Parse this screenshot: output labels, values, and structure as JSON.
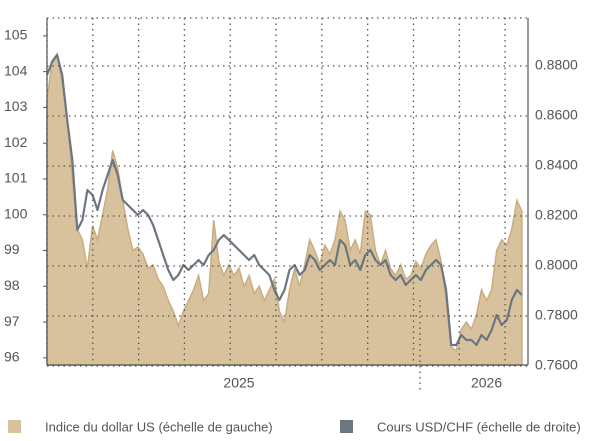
{
  "chart_data": {
    "type": "line",
    "xlim": [
      0,
      95.2
    ],
    "xticks": [
      {
        "value": 38,
        "label": "2025"
      },
      {
        "value": 87,
        "label": "2026"
      }
    ],
    "ylim": [
      95.8,
      105.5
    ],
    "yticks": [
      96,
      97,
      98,
      99,
      100,
      101,
      102,
      103,
      104,
      105
    ],
    "y2lim": [
      0.7604,
      0.8992
    ],
    "y2ticks": [
      {
        "value": 0.76,
        "label": "0.7600"
      },
      {
        "value": 0.78,
        "label": "0.7800"
      },
      {
        "value": 0.8,
        "label": "0.8000"
      },
      {
        "value": 0.82,
        "label": "0.8200"
      },
      {
        "value": 0.84,
        "label": "0.8400"
      },
      {
        "value": 0.86,
        "label": "0.8600"
      },
      {
        "value": 0.88,
        "label": "0.8800"
      }
    ],
    "grid": true,
    "legend": "bottom",
    "series": [
      {
        "name": "Indice du dollar US (échelle de gauche)",
        "color": "#d8c29e",
        "style": "area",
        "values": [
          103.2,
          104.3,
          104.5,
          103.65,
          102.7,
          101,
          99.6,
          99.3,
          98.5,
          99.7,
          99.3,
          100,
          100.7,
          101.8,
          101.3,
          100.4,
          99.6,
          99,
          99.1,
          98.9,
          98.5,
          98.6,
          98.2,
          98,
          97.6,
          97.3,
          96.9,
          97.3,
          97.6,
          97.9,
          98.3,
          97.6,
          97.8,
          99.85,
          98.7,
          98.3,
          98.6,
          98.3,
          98.5,
          98,
          98.3,
          97.8,
          98,
          97.6,
          97.9,
          98.2,
          97.3,
          97,
          97.9,
          98.5,
          98,
          98.6,
          99.3,
          99,
          98.6,
          99.15,
          98.9,
          99.3,
          100.1,
          99.85,
          99,
          99.3,
          98.9,
          100.1,
          100,
          99,
          98.6,
          99,
          98.5,
          98.3,
          98.6,
          98.2,
          98.3,
          98.7,
          98.5,
          98.9,
          99.15,
          99.3,
          98.7,
          97.6,
          96.3,
          96.2,
          96.8,
          97,
          96.8,
          97.2,
          97.9,
          97.6,
          97.9,
          99,
          99.3,
          99.15,
          99.6,
          100.4,
          100.1
        ]
      },
      {
        "name": "Cours USD/CHF (échelle de droite)",
        "color": "#6b7680",
        "axis": "y2",
        "values": [
          0.8764,
          0.8816,
          0.8844,
          0.8764,
          0.8584,
          0.8424,
          0.8144,
          0.8184,
          0.8304,
          0.8284,
          0.8224,
          0.8304,
          0.8364,
          0.8424,
          0.8364,
          0.8264,
          0.8244,
          0.8224,
          0.8204,
          0.8224,
          0.8204,
          0.8164,
          0.8104,
          0.8044,
          0.7984,
          0.7944,
          0.7964,
          0.8004,
          0.7984,
          0.8004,
          0.8024,
          0.8004,
          0.8044,
          0.8064,
          0.8104,
          0.8124,
          0.8104,
          0.8084,
          0.8064,
          0.8044,
          0.8024,
          0.8044,
          0.8004,
          0.7984,
          0.7964,
          0.7904,
          0.7864,
          0.7904,
          0.7984,
          0.8004,
          0.7964,
          0.7984,
          0.8044,
          0.8024,
          0.7984,
          0.8004,
          0.8024,
          0.8004,
          0.8104,
          0.8084,
          0.8004,
          0.8024,
          0.7984,
          0.8044,
          0.8064,
          0.8024,
          0.8004,
          0.8024,
          0.7964,
          0.7944,
          0.7964,
          0.7924,
          0.7944,
          0.7964,
          0.7944,
          0.7984,
          0.8004,
          0.8024,
          0.8004,
          0.7904,
          0.7684,
          0.7684,
          0.7724,
          0.7704,
          0.7704,
          0.7684,
          0.7724,
          0.7704,
          0.7744,
          0.7804,
          0.7764,
          0.7784,
          0.7864,
          0.7904,
          0.7884
        ]
      }
    ]
  }
}
